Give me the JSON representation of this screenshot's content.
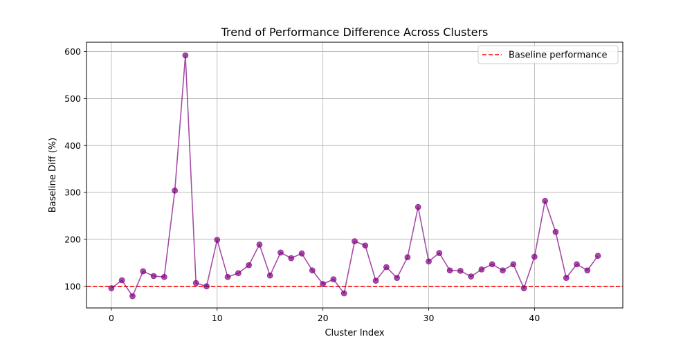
{
  "chart_data": {
    "type": "line",
    "title": "Trend of Performance Difference Across Clusters",
    "xlabel": "Cluster Index",
    "ylabel": "Baseline Diff (%)",
    "xlim": [
      -2.35,
      48.35
    ],
    "ylim": [
      54,
      620
    ],
    "xticks": [
      0,
      10,
      20,
      30,
      40
    ],
    "yticks": [
      100,
      200,
      300,
      400,
      500,
      600
    ],
    "grid": true,
    "legend_position": "upper right",
    "series": [
      {
        "name": "",
        "color": "#800080",
        "marker": "circle",
        "x": [
          0,
          1,
          2,
          3,
          4,
          5,
          6,
          7,
          8,
          9,
          10,
          11,
          12,
          13,
          14,
          15,
          16,
          17,
          18,
          19,
          20,
          21,
          22,
          23,
          24,
          25,
          26,
          27,
          28,
          29,
          30,
          31,
          32,
          33,
          34,
          35,
          36,
          37,
          38,
          39,
          40,
          41,
          42,
          43,
          44,
          45,
          46
        ],
        "values": [
          96,
          113,
          79,
          132,
          122,
          120,
          304,
          592,
          107,
          100,
          199,
          120,
          128,
          145,
          189,
          123,
          172,
          160,
          170,
          134,
          105,
          115,
          85,
          196,
          187,
          112,
          141,
          118,
          162,
          269,
          153,
          171,
          134,
          133,
          121,
          136,
          147,
          134,
          147,
          96,
          163,
          282,
          216,
          118,
          147,
          134,
          165
        ]
      }
    ],
    "baseline": {
      "name": "Baseline performance",
      "value": 100,
      "color": "#ff0000",
      "style": "dashed"
    }
  }
}
